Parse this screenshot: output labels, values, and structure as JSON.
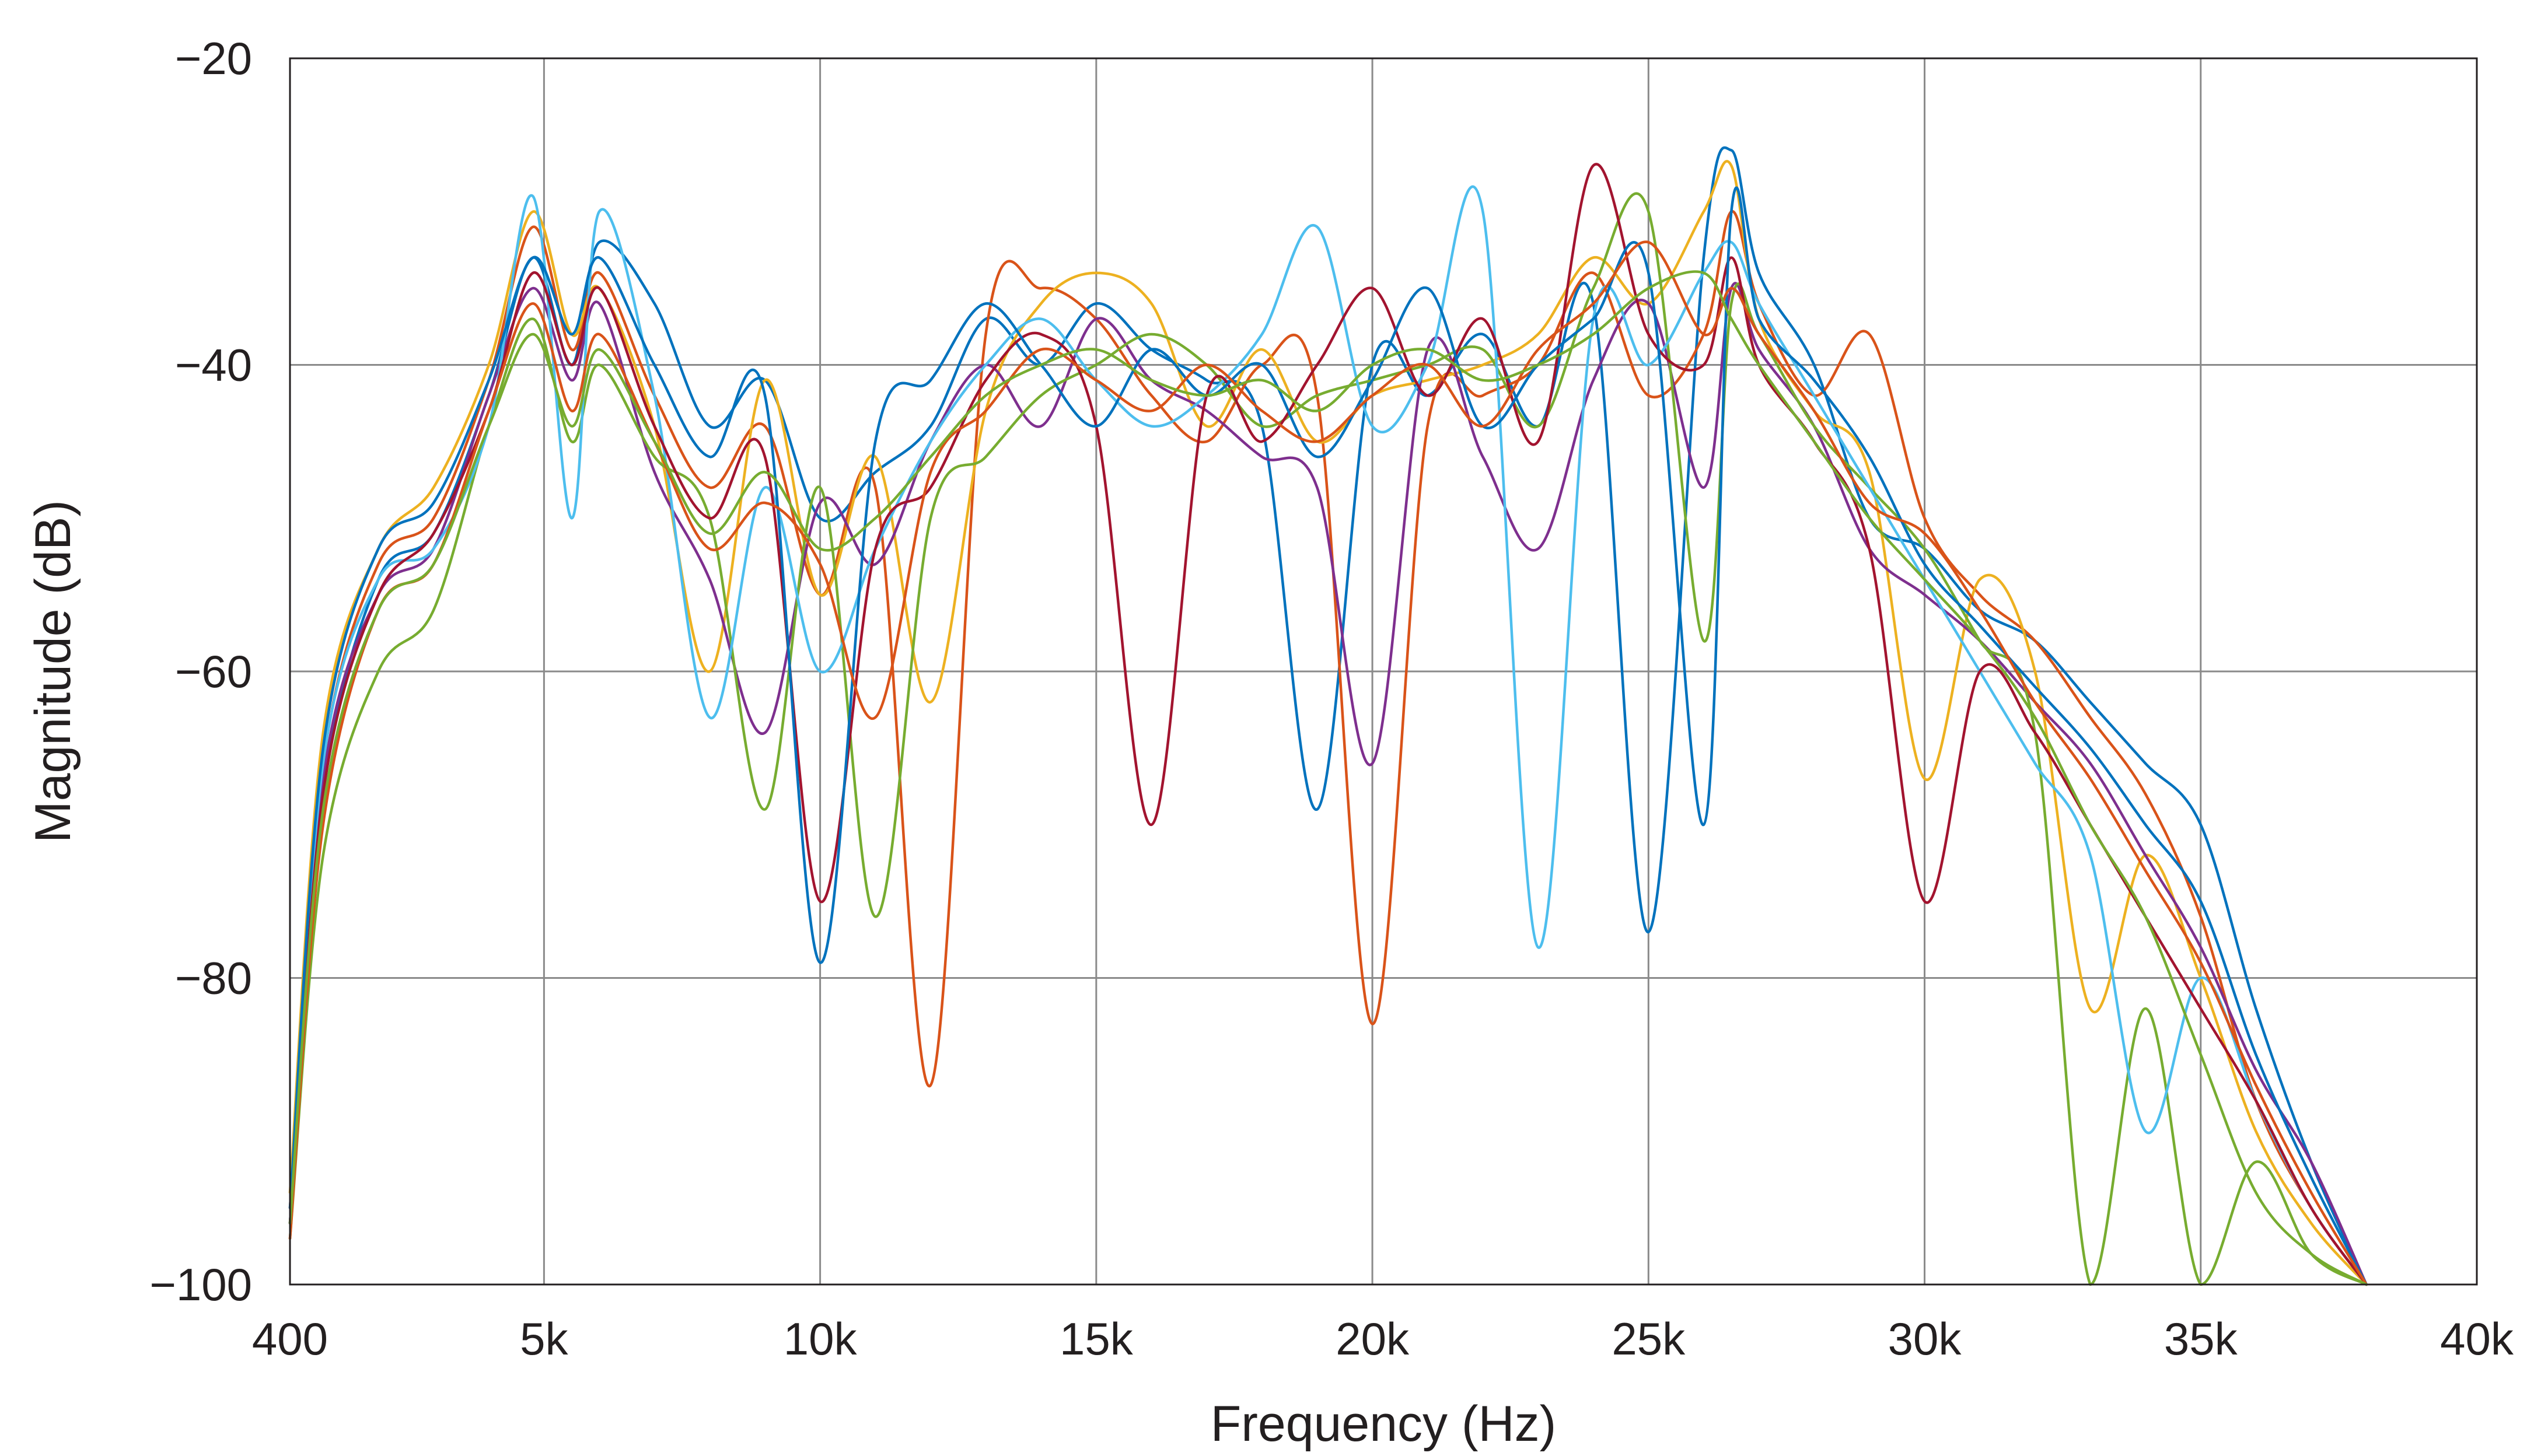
{
  "chart_data": {
    "type": "line",
    "title": "",
    "xlabel": "Frequency (Hz)",
    "ylabel": "Magnitude (dB)",
    "xlim": [
      400,
      40000
    ],
    "ylim": [
      -100,
      -20
    ],
    "x_ticks": [
      400,
      5000,
      10000,
      15000,
      20000,
      25000,
      30000,
      35000,
      40000
    ],
    "x_tick_labels": [
      "400",
      "5k",
      "10k",
      "15k",
      "20k",
      "25k",
      "30k",
      "35k",
      "40k"
    ],
    "y_ticks": [
      -100,
      -80,
      -60,
      -40,
      -20
    ],
    "y_tick_labels": [
      "−100",
      "−80",
      "−60",
      "−40",
      "−20"
    ],
    "grid": true,
    "legend": "none",
    "x": [
      400,
      1000,
      2000,
      3000,
      4000,
      4800,
      5500,
      6000,
      7000,
      8000,
      9000,
      10000,
      11000,
      12000,
      13000,
      14000,
      15000,
      16000,
      17000,
      18000,
      19000,
      20000,
      21000,
      22000,
      23000,
      24000,
      25000,
      26000,
      26500,
      27000,
      28000,
      29000,
      30000,
      31000,
      32000,
      33000,
      34000,
      35000,
      36000,
      37000,
      38000
    ],
    "series": [
      {
        "color": "#0072bd",
        "values": [
          -96,
          -68,
          -54,
          -51,
          -42,
          -33,
          -40,
          -32,
          -36,
          -44,
          -41,
          -50,
          -47,
          -44,
          -37,
          -40,
          -36,
          -39,
          -41,
          -44,
          -69,
          -40,
          -42,
          -38,
          -44,
          -36,
          -77,
          -33,
          -26,
          -34,
          -40,
          -50,
          -52,
          -56,
          -58,
          -62,
          -66,
          -70,
          -82,
          -92,
          -100
        ]
      },
      {
        "color": "#d95319",
        "values": [
          -95,
          -66,
          -53,
          -50,
          -41,
          -31,
          -39,
          -34,
          -42,
          -48,
          -44,
          -55,
          -48,
          -87,
          -38,
          -35,
          -37,
          -42,
          -45,
          -40,
          -42,
          -83,
          -44,
          -42,
          -40,
          -34,
          -42,
          -38,
          -30,
          -36,
          -42,
          -38,
          -50,
          -55,
          -58,
          -63,
          -68,
          -76,
          -88,
          -95,
          -100
        ]
      },
      {
        "color": "#edb120",
        "values": [
          -94,
          -64,
          -52,
          -48,
          -40,
          -30,
          -38,
          -35,
          -44,
          -60,
          -41,
          -55,
          -46,
          -62,
          -43,
          -36,
          -34,
          -36,
          -44,
          -39,
          -45,
          -42,
          -41,
          -40,
          -38,
          -33,
          -36,
          -30,
          -27,
          -37,
          -43,
          -47,
          -67,
          -54,
          -60,
          -82,
          -72,
          -80,
          -90,
          -96,
          -100
        ]
      },
      {
        "color": "#7e2f8e",
        "values": [
          -96,
          -67,
          -55,
          -52,
          -42,
          -35,
          -41,
          -36,
          -47,
          -54,
          -64,
          -49,
          -53,
          -45,
          -40,
          -44,
          -37,
          -41,
          -43,
          -46,
          -48,
          -66,
          -39,
          -46,
          -52,
          -41,
          -36,
          -48,
          -35,
          -39,
          -44,
          -52,
          -55,
          -58,
          -62,
          -66,
          -72,
          -78,
          -86,
          -92,
          -100
        ]
      },
      {
        "color": "#77ac30",
        "values": [
          -97,
          -72,
          -60,
          -56,
          -44,
          -37,
          -45,
          -40,
          -46,
          -50,
          -69,
          -48,
          -76,
          -50,
          -46,
          -42,
          -40,
          -38,
          -40,
          -44,
          -42,
          -41,
          -40,
          -39,
          -44,
          -35,
          -30,
          -58,
          -36,
          -38,
          -44,
          -48,
          -52,
          -58,
          -64,
          -100,
          -82,
          -100,
          -92,
          -98,
          -100
        ]
      },
      {
        "color": "#4dbeee",
        "values": [
          -96,
          -66,
          -54,
          -52,
          -44,
          -29,
          -50,
          -30,
          -42,
          -63,
          -48,
          -60,
          -52,
          -45,
          -40,
          -37,
          -41,
          -44,
          -42,
          -38,
          -31,
          -44,
          -40,
          -30,
          -78,
          -37,
          -40,
          -34,
          -32,
          -36,
          -42,
          -48,
          -54,
          -60,
          -66,
          -72,
          -90,
          -80,
          -88,
          -95,
          -100
        ]
      },
      {
        "color": "#a2142f",
        "values": [
          -96,
          -68,
          -55,
          -51,
          -43,
          -34,
          -40,
          -35,
          -44,
          -50,
          -46,
          -75,
          -52,
          -48,
          -41,
          -38,
          -44,
          -70,
          -42,
          -45,
          -40,
          -35,
          -42,
          -37,
          -45,
          -27,
          -38,
          -40,
          -33,
          -40,
          -45,
          -52,
          -75,
          -60,
          -64,
          -70,
          -76,
          -82,
          -88,
          -95,
          -100
        ]
      },
      {
        "color": "#0072bd",
        "values": [
          -95,
          -65,
          -52,
          -49,
          -41,
          -33,
          -38,
          -33,
          -40,
          -46,
          -42,
          -79,
          -45,
          -41,
          -36,
          -40,
          -44,
          -39,
          -42,
          -40,
          -46,
          -41,
          -35,
          -44,
          -40,
          -37,
          -34,
          -70,
          -30,
          -37,
          -41,
          -46,
          -53,
          -57,
          -61,
          -65,
          -70,
          -75,
          -85,
          -93,
          -100
        ]
      },
      {
        "color": "#d95319",
        "values": [
          -97,
          -70,
          -56,
          -53,
          -43,
          -36,
          -43,
          -38,
          -45,
          -52,
          -49,
          -53,
          -63,
          -47,
          -43,
          -39,
          -41,
          -43,
          -40,
          -43,
          -45,
          -42,
          -40,
          -44,
          -39,
          -36,
          -32,
          -38,
          -35,
          -38,
          -43,
          -49,
          -51,
          -56,
          -62,
          -67,
          -73,
          -79,
          -87,
          -94,
          -100
        ]
      },
      {
        "color": "#77ac30",
        "values": [
          -96,
          -69,
          -56,
          -53,
          -44,
          -38,
          -44,
          -39,
          -45,
          -51,
          -47,
          -52,
          -50,
          -46,
          -42,
          -40,
          -39,
          -41,
          -42,
          -41,
          -43,
          -40,
          -39,
          -41,
          -40,
          -38,
          -35,
          -34,
          -37,
          -40,
          -45,
          -50,
          -54,
          -58,
          -63,
          -70,
          -76,
          -85,
          -94,
          -98,
          -100
        ]
      }
    ]
  }
}
